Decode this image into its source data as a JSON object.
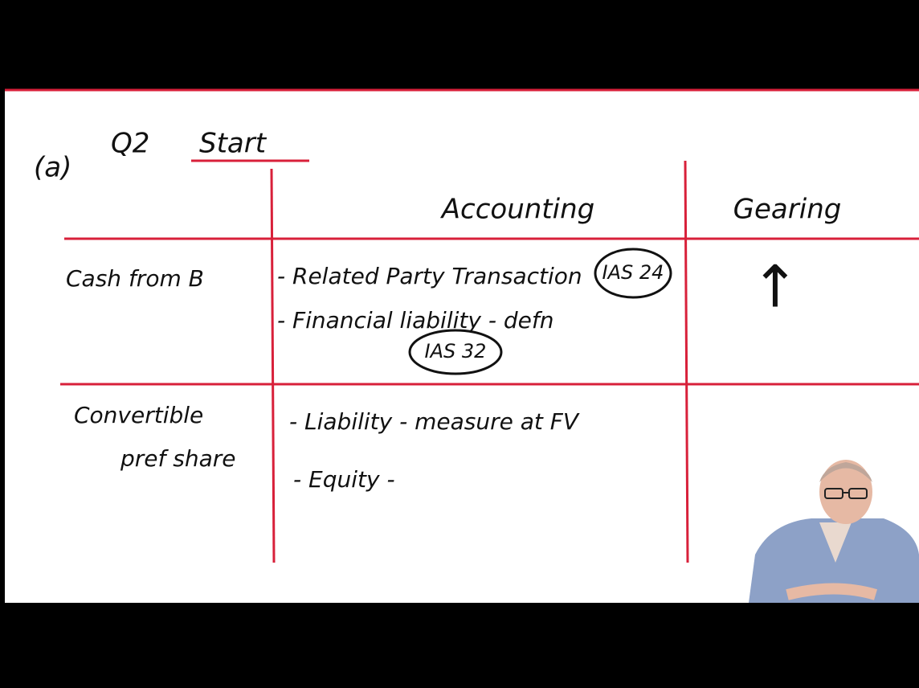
{
  "header": {
    "part": "(a)",
    "question": "Q2",
    "title": "Start"
  },
  "table": {
    "columns": [
      "Accounting",
      "Gearing"
    ],
    "rows": [
      {
        "label": "Cash from B",
        "accounting": [
          {
            "text": "- Related Party Transaction",
            "reference": "IAS 24"
          },
          {
            "text": "- Financial liability - defn",
            "reference": "IAS 32"
          }
        ],
        "gearing": "↑"
      },
      {
        "label": [
          "Convertible",
          "pref share"
        ],
        "accounting": [
          {
            "text": "- Liability - measure at FV"
          },
          {
            "text": "- Equity -"
          }
        ]
      }
    ]
  }
}
